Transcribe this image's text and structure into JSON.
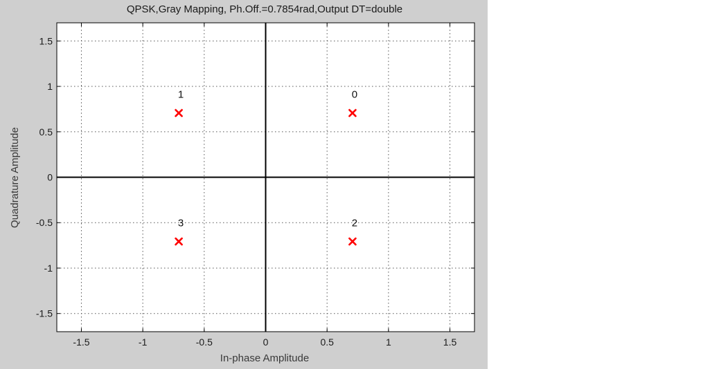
{
  "chart_data": {
    "type": "scatter",
    "title": "QPSK,Gray Mapping, Ph.Off.=0.7854rad,Output DT=double",
    "xlabel": "In-phase Amplitude",
    "ylabel": "Quadrature Amplitude",
    "xlim": [
      -1.7,
      1.7
    ],
    "ylim": [
      -1.7,
      1.7
    ],
    "xticks": [
      -1.5,
      -1,
      -0.5,
      0,
      0.5,
      1,
      1.5
    ],
    "yticks": [
      -1.5,
      -1,
      -0.5,
      0,
      0.5,
      1,
      1.5
    ],
    "xtick_labels": [
      "-1.5",
      "-1",
      "-0.5",
      "0",
      "0.5",
      "1",
      "1.5"
    ],
    "ytick_labels": [
      "-1.5",
      "-1",
      "-0.5",
      "0",
      "0.5",
      "1",
      "1.5"
    ],
    "grid": true,
    "grid_style": "dotted",
    "axes_lines_through_origin": true,
    "marker": "x",
    "marker_color": "#ff0000",
    "points": [
      {
        "label": "0",
        "x": 0.7071,
        "y": 0.7071
      },
      {
        "label": "1",
        "x": -0.7071,
        "y": 0.7071
      },
      {
        "label": "2",
        "x": 0.7071,
        "y": -0.7071
      },
      {
        "label": "3",
        "x": -0.7071,
        "y": -0.7071
      }
    ]
  }
}
